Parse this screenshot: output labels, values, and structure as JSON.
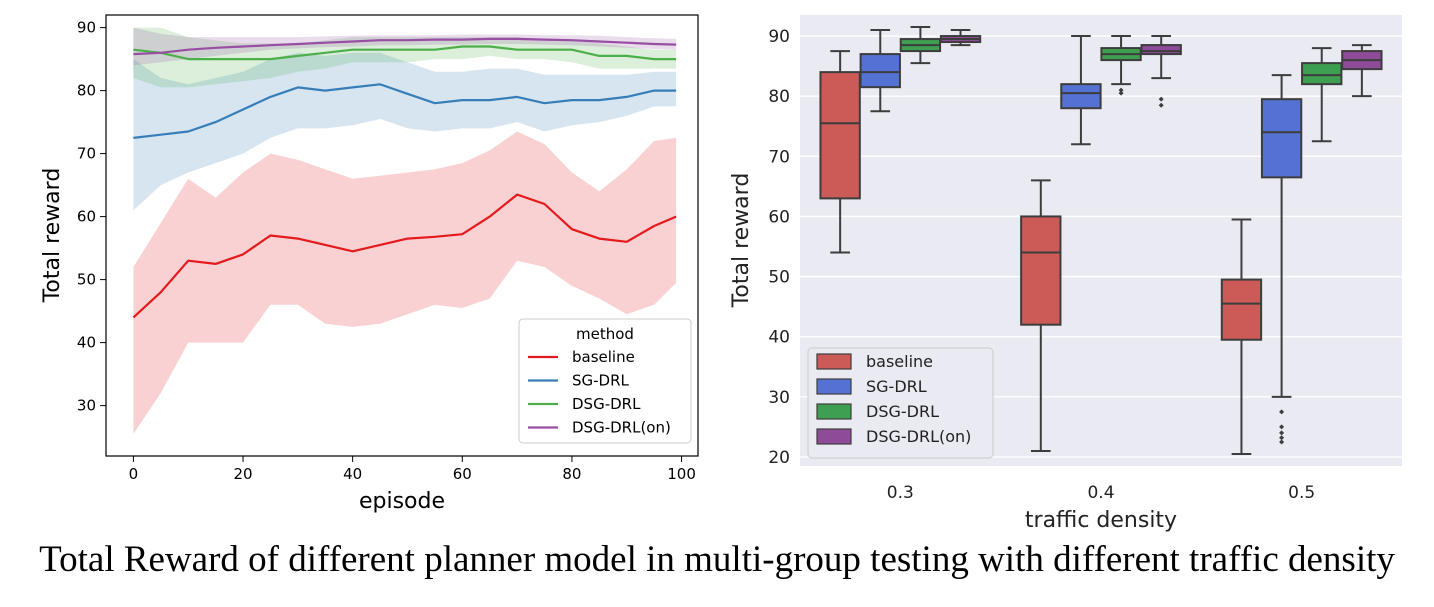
{
  "caption": "Total Reward of different planner model in multi-group testing with different traffic density",
  "chart_data": [
    {
      "type": "line",
      "xlabel": "episode",
      "ylabel": "Total reward",
      "xlim": [
        -5,
        103
      ],
      "ylim": [
        22,
        92
      ],
      "xticks": [
        0,
        20,
        40,
        60,
        80,
        100
      ],
      "yticks": [
        30,
        40,
        50,
        60,
        70,
        80,
        90
      ],
      "grid": false,
      "legend": {
        "title": "method",
        "position": "lower-right"
      },
      "series": [
        {
          "name": "baseline",
          "color": "#e41a1c",
          "x": [
            0,
            5,
            10,
            15,
            20,
            25,
            30,
            35,
            40,
            45,
            50,
            55,
            60,
            65,
            70,
            75,
            80,
            85,
            90,
            95,
            99
          ],
          "mean": [
            44,
            48,
            53,
            52.5,
            54,
            57,
            56.5,
            55.5,
            54.5,
            55.5,
            56.5,
            56.8,
            57.2,
            60,
            63.5,
            62,
            58,
            56.5,
            56,
            58.5,
            60
          ],
          "lower": [
            25.5,
            32,
            40,
            40,
            40,
            46,
            46,
            43,
            42.5,
            43,
            44.5,
            46,
            45.5,
            47,
            53,
            52,
            49,
            47,
            44.5,
            46,
            49.5
          ],
          "upper": [
            52,
            59,
            66,
            63,
            67,
            70,
            69,
            67.5,
            66,
            66.5,
            67,
            67.5,
            68.5,
            70.5,
            73.5,
            71.5,
            67,
            64,
            67.5,
            72,
            72.5
          ]
        },
        {
          "name": "SG-DRL",
          "color": "#377eb8",
          "x": [
            0,
            5,
            10,
            15,
            20,
            25,
            30,
            35,
            40,
            45,
            50,
            55,
            60,
            65,
            70,
            75,
            80,
            85,
            90,
            95,
            99
          ],
          "mean": [
            72.5,
            73,
            73.5,
            75,
            77,
            79,
            80.5,
            80,
            80.5,
            81,
            79.5,
            78,
            78.5,
            78.5,
            79,
            78,
            78.5,
            78.5,
            79,
            80,
            80
          ],
          "lower": [
            61,
            65,
            67,
            68.5,
            70,
            72.5,
            74,
            74,
            74.5,
            75.5,
            74,
            73.5,
            74,
            74,
            75,
            73.5,
            74.5,
            75,
            76,
            77.5,
            77.5
          ],
          "upper": [
            85,
            82,
            81,
            82,
            83,
            85,
            86,
            85.5,
            86,
            86,
            84.5,
            83,
            83,
            83.5,
            83.5,
            82.5,
            82.5,
            82.5,
            82.5,
            83,
            83
          ]
        },
        {
          "name": "DSG-DRL",
          "color": "#4daf4a",
          "x": [
            0,
            5,
            10,
            15,
            20,
            25,
            30,
            35,
            40,
            45,
            50,
            55,
            60,
            65,
            70,
            75,
            80,
            85,
            90,
            95,
            99
          ],
          "mean": [
            86.5,
            86,
            85,
            85,
            85,
            85,
            85.5,
            86,
            86.5,
            86.5,
            86.5,
            86.5,
            87,
            87,
            86.5,
            86.5,
            86.5,
            85.5,
            85.5,
            85,
            85
          ],
          "lower": [
            82,
            80.5,
            80.5,
            81,
            81.5,
            82,
            83,
            83.5,
            84.5,
            84.5,
            84.5,
            85,
            85,
            85.5,
            85,
            85,
            84.5,
            83.5,
            83.5,
            83.5,
            83.5
          ],
          "upper": [
            90,
            90,
            88.5,
            88,
            87.5,
            87.5,
            87.5,
            88,
            88.5,
            88.5,
            88.5,
            88.5,
            88.5,
            88.5,
            88.5,
            88,
            88,
            87.5,
            87,
            86.5,
            86.5
          ]
        },
        {
          "name": "DSG-DRL(on)",
          "color": "#984ea3",
          "x": [
            0,
            5,
            10,
            15,
            20,
            25,
            30,
            35,
            40,
            45,
            50,
            55,
            60,
            65,
            70,
            75,
            80,
            85,
            90,
            95,
            99
          ],
          "mean": [
            85.8,
            86,
            86.5,
            86.8,
            87,
            87.2,
            87.4,
            87.6,
            87.8,
            88,
            88,
            88.1,
            88.1,
            88.2,
            88.2,
            88.1,
            88,
            87.8,
            87.6,
            87.4,
            87.3
          ],
          "lower": [
            84,
            84.5,
            85,
            85.5,
            86,
            86.5,
            86.7,
            86.9,
            87,
            87.2,
            87.2,
            87.3,
            87.3,
            87.4,
            87.4,
            87.3,
            87.2,
            87,
            86.8,
            86.6,
            86.5
          ],
          "upper": [
            90,
            89,
            88.5,
            88.5,
            88.5,
            88.5,
            88.5,
            88.6,
            88.7,
            88.8,
            88.8,
            88.8,
            88.9,
            88.9,
            88.9,
            88.8,
            88.8,
            88.7,
            88.5,
            88.3,
            88.2
          ]
        }
      ]
    },
    {
      "type": "box",
      "xlabel": "traffic density",
      "ylabel": "Total reward",
      "ylim": [
        18.5,
        93.5
      ],
      "yticks": [
        20,
        30,
        40,
        50,
        60,
        70,
        80,
        90
      ],
      "categories": [
        "0.3",
        "0.4",
        "0.5"
      ],
      "grid": true,
      "legend": {
        "position": "lower-left"
      },
      "series": [
        {
          "name": "baseline",
          "color": "#cc5a57",
          "boxes": [
            {
              "whislo": 54,
              "q1": 63,
              "med": 75.5,
              "q3": 84,
              "whishi": 87.5,
              "fliers": []
            },
            {
              "whislo": 21,
              "q1": 42,
              "med": 54,
              "q3": 60,
              "whishi": 66,
              "fliers": []
            },
            {
              "whislo": 20.5,
              "q1": 39.5,
              "med": 45.5,
              "q3": 49.5,
              "whishi": 59.5,
              "fliers": []
            }
          ]
        },
        {
          "name": "SG-DRL",
          "color": "#5472d3",
          "boxes": [
            {
              "whislo": 77.5,
              "q1": 81.5,
              "med": 84,
              "q3": 87,
              "whishi": 91,
              "fliers": []
            },
            {
              "whislo": 72,
              "q1": 78,
              "med": 80.5,
              "q3": 82,
              "whishi": 90,
              "fliers": []
            },
            {
              "whislo": 30,
              "q1": 66.5,
              "med": 74,
              "q3": 79.5,
              "whishi": 83.5,
              "fliers": [
                27.5,
                25,
                24,
                23.2,
                22.5
              ]
            }
          ]
        },
        {
          "name": "DSG-DRL",
          "color": "#3f9f50",
          "boxes": [
            {
              "whislo": 85.5,
              "q1": 87.5,
              "med": 88.5,
              "q3": 89.5,
              "whishi": 91.5,
              "fliers": []
            },
            {
              "whislo": 82,
              "q1": 86,
              "med": 87,
              "q3": 88,
              "whishi": 90,
              "fliers": [
                81,
                80.5
              ]
            },
            {
              "whislo": 72.5,
              "q1": 82,
              "med": 83.5,
              "q3": 85.5,
              "whishi": 88,
              "fliers": []
            }
          ]
        },
        {
          "name": "DSG-DRL(on)",
          "color": "#8e4b98",
          "boxes": [
            {
              "whislo": 88.5,
              "q1": 89,
              "med": 89.5,
              "q3": 90,
              "whishi": 91,
              "fliers": []
            },
            {
              "whislo": 83,
              "q1": 87,
              "med": 87.5,
              "q3": 88.5,
              "whishi": 90,
              "fliers": [
                79.5,
                78.5
              ]
            },
            {
              "whislo": 80,
              "q1": 84.5,
              "med": 86,
              "q3": 87.5,
              "whishi": 88.5,
              "fliers": []
            }
          ]
        }
      ]
    }
  ]
}
